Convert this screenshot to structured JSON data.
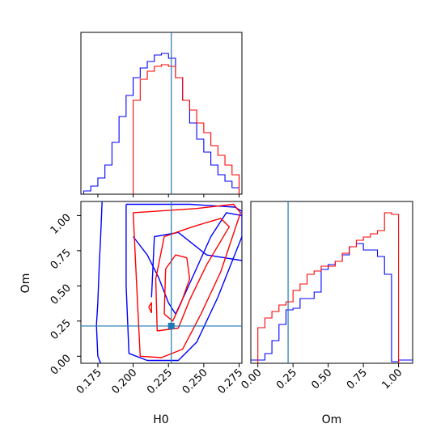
{
  "chart_data": [
    {
      "type": "histogram",
      "panel": "H0 marginal",
      "xlim": [
        0.163,
        0.277
      ],
      "truth": 0.227,
      "series": [
        {
          "color": "#0000ff",
          "bins": [
            0.165,
            0.17,
            0.175,
            0.18,
            0.185,
            0.19,
            0.195,
            0.2,
            0.205,
            0.21,
            0.215,
            0.22,
            0.225,
            0.23,
            0.235,
            0.24,
            0.245,
            0.25,
            0.255,
            0.26,
            0.265,
            0.27,
            0.275
          ],
          "values": [
            0.02,
            0.05,
            0.1,
            0.18,
            0.32,
            0.48,
            0.61,
            0.72,
            0.78,
            0.82,
            0.86,
            0.87,
            0.84,
            0.72,
            0.58,
            0.44,
            0.34,
            0.26,
            0.18,
            0.12,
            0.08,
            0.04
          ]
        },
        {
          "color": "#ff0000",
          "bins": [
            0.2,
            0.205,
            0.21,
            0.215,
            0.22,
            0.225,
            0.23,
            0.235,
            0.24,
            0.245,
            0.25,
            0.255,
            0.26,
            0.265,
            0.27,
            0.275
          ],
          "values": [
            0.58,
            0.71,
            0.76,
            0.79,
            0.8,
            0.79,
            0.72,
            0.58,
            0.52,
            0.44,
            0.38,
            0.3,
            0.24,
            0.18,
            0.12
          ]
        }
      ]
    },
    {
      "type": "contour",
      "panel": "Om vs H0",
      "xlabel": "H0",
      "ylabel": "Om",
      "xlim": [
        0.163,
        0.277
      ],
      "ylim": [
        -0.05,
        1.1
      ],
      "xticks": [
        "0.175",
        "0.200",
        "0.225",
        "0.250",
        "0.275"
      ],
      "yticks": [
        "0.00",
        "0.25",
        "0.50",
        "0.75",
        "1.00"
      ],
      "truth": {
        "H0": 0.227,
        "Om": 0.215
      },
      "series": [
        {
          "color": "#0000ff",
          "contours": [
            [
              [
                0.195,
                1.08
              ],
              [
                0.24,
                1.08
              ],
              [
                0.272,
                1.06
              ],
              [
                0.277,
                1.03
              ],
              [
                0.277,
                0.85
              ],
              [
                0.26,
                0.42
              ],
              [
                0.245,
                0.1
              ],
              [
                0.232,
                -0.03
              ],
              [
                0.21,
                -0.03
              ],
              [
                0.197,
                0.02
              ],
              [
                0.195,
                0.5
              ],
              [
                0.195,
                1.08
              ]
            ],
            [
              [
                0.178,
                1.1
              ],
              [
                0.177,
                0.85
              ],
              [
                0.176,
                0.65
              ],
              [
                0.175,
                0.38
              ],
              [
                0.174,
                0.22
              ],
              [
                0.175,
                0.0
              ],
              [
                0.177,
                -0.05
              ]
            ],
            [
              [
                0.213,
                0.42
              ],
              [
                0.215,
                0.85
              ],
              [
                0.232,
                0.88
              ],
              [
                0.252,
                0.72
              ],
              [
                0.277,
                0.68
              ]
            ],
            [
              [
                0.2,
                0.85
              ],
              [
                0.21,
                0.72
              ],
              [
                0.218,
                0.56
              ],
              [
                0.225,
                0.38
              ],
              [
                0.23,
                0.3
              ],
              [
                0.237,
                0.45
              ],
              [
                0.255,
                0.85
              ],
              [
                0.266,
                1.02
              ],
              [
                0.277,
                1.0
              ]
            ]
          ]
        },
        {
          "color": "#ff0000",
          "contours": [
            [
              [
                0.2,
                1.02
              ],
              [
                0.245,
                1.05
              ],
              [
                0.271,
                1.08
              ],
              [
                0.276,
                1.02
              ],
              [
                0.262,
                0.6
              ],
              [
                0.248,
                0.3
              ],
              [
                0.235,
                0.05
              ],
              [
                0.22,
                -0.01
              ],
              [
                0.205,
                0.0
              ],
              [
                0.203,
                0.4
              ],
              [
                0.2,
                1.02
              ]
            ],
            [
              [
                0.217,
                0.18
              ],
              [
                0.216,
                0.55
              ],
              [
                0.222,
                0.85
              ],
              [
                0.242,
                0.92
              ],
              [
                0.262,
                0.98
              ],
              [
                0.268,
                0.92
              ],
              [
                0.252,
                0.65
              ],
              [
                0.24,
                0.4
              ],
              [
                0.232,
                0.2
              ],
              [
                0.217,
                0.18
              ]
            ],
            [
              [
                0.222,
                0.3
              ],
              [
                0.223,
                0.62
              ],
              [
                0.23,
                0.72
              ],
              [
                0.238,
                0.7
              ],
              [
                0.24,
                0.55
              ],
              [
                0.234,
                0.38
              ],
              [
                0.228,
                0.25
              ],
              [
                0.222,
                0.3
              ]
            ],
            [
              [
                0.211,
                0.35
              ],
              [
                0.213,
                0.38
              ],
              [
                0.213,
                0.31
              ],
              [
                0.211,
                0.35
              ]
            ]
          ]
        }
      ]
    },
    {
      "type": "histogram",
      "panel": "Om marginal",
      "xlabel": "Om",
      "xlim": [
        -0.05,
        1.1
      ],
      "xticks": [
        "0.00",
        "0.25",
        "0.50",
        "0.75",
        "1.00"
      ],
      "truth": 0.215,
      "series": [
        {
          "color": "#0000ff",
          "bins": [
            -0.05,
            0.0,
            0.05,
            0.1,
            0.15,
            0.2,
            0.25,
            0.3,
            0.35,
            0.4,
            0.45,
            0.5,
            0.55,
            0.6,
            0.65,
            0.7,
            0.75,
            0.8,
            0.85,
            0.9,
            0.95,
            1.0,
            1.05,
            1.1
          ],
          "values": [
            0.02,
            0.02,
            0.06,
            0.14,
            0.24,
            0.33,
            0.34,
            0.4,
            0.4,
            0.44,
            0.58,
            0.61,
            0.63,
            0.67,
            0.72,
            0.74,
            0.7,
            0.7,
            0.66,
            0.55,
            0.01,
            0.02,
            0.02
          ]
        },
        {
          "color": "#ff0000",
          "bins": [
            0.0,
            0.05,
            0.1,
            0.15,
            0.2,
            0.25,
            0.3,
            0.35,
            0.4,
            0.45,
            0.5,
            0.55,
            0.6,
            0.65,
            0.7,
            0.75,
            0.8,
            0.85,
            0.9,
            0.95,
            1.0
          ],
          "values": [
            0.22,
            0.28,
            0.32,
            0.36,
            0.38,
            0.45,
            0.49,
            0.55,
            0.57,
            0.6,
            0.6,
            0.63,
            0.68,
            0.72,
            0.76,
            0.78,
            0.8,
            0.82,
            0.93,
            0.92
          ]
        }
      ]
    }
  ]
}
